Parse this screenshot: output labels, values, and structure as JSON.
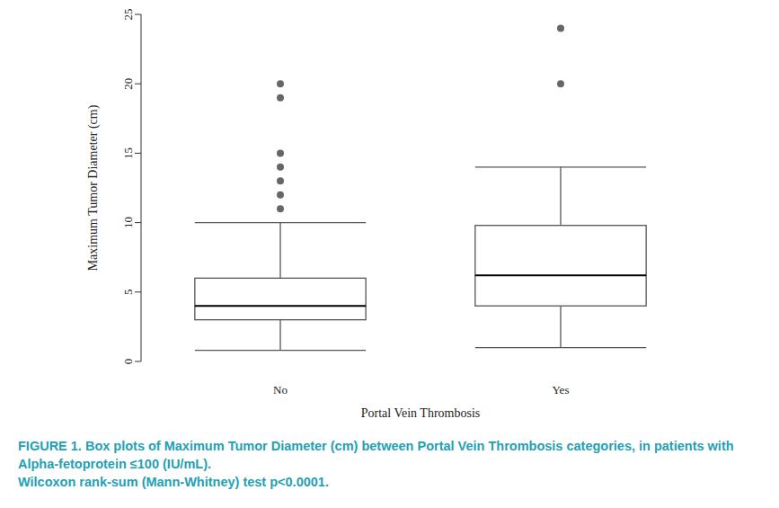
{
  "chart_data": {
    "type": "box",
    "title": "FIGURE 1. Box plots of Maximum Tumor Diameter (cm) between Portal Vein Thrombosis categories, in patients with Alpha-fetoprotein ≤100 (IU/mL).",
    "subtitle": "Wilcoxon rank-sum (Mann-Whitney) test p<0.0001.",
    "x_label": "Portal Vein Thrombosis",
    "y_label": "Maximum Tumor Diameter (cm)",
    "categories": [
      "No",
      "Yes"
    ],
    "boxes": [
      {
        "whislo": 0.8,
        "q1": 3,
        "med": 4,
        "q3": 6,
        "whishi": 10,
        "fliers": [
          11,
          12,
          13,
          14,
          15,
          19,
          20
        ]
      },
      {
        "whislo": 1,
        "q1": 4,
        "med": 6.2,
        "q3": 9.8,
        "whishi": 14,
        "fliers": [
          20,
          24
        ]
      }
    ],
    "color": "#666666",
    "ylim": [
      0,
      25
    ],
    "yticks": [
      0,
      5,
      10,
      15,
      20,
      25
    ],
    "grid": false
  }
}
